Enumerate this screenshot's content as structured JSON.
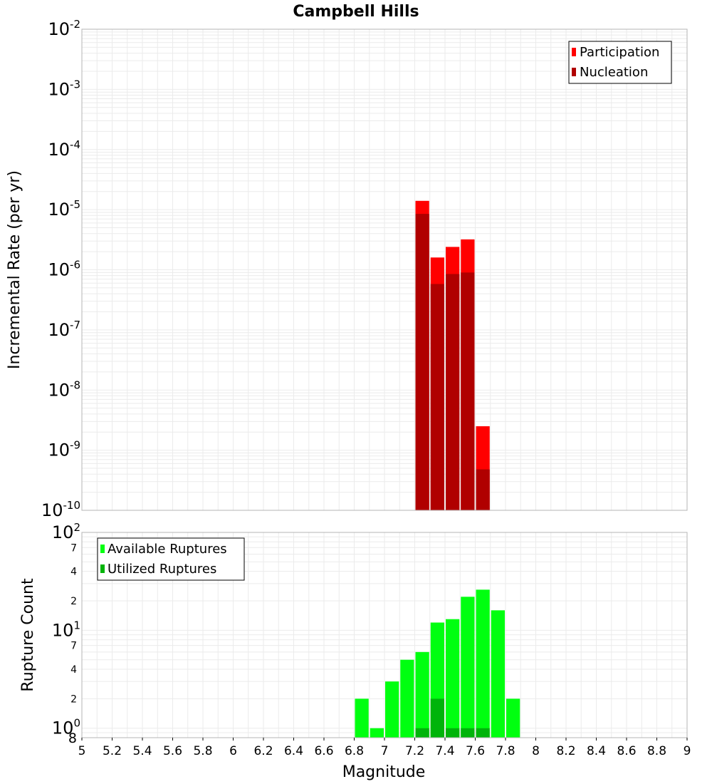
{
  "colors": {
    "participation": "#ff0000",
    "nucleation": "#b00000",
    "available": "#00ff10",
    "utilized": "#00b40a",
    "grid": "#ebebeb",
    "frame": "#b4b4b4"
  },
  "chart_data": [
    {
      "type": "bar",
      "title": "Campbell Hills",
      "xlabel": "",
      "ylabel": "Incremental Rate (per yr)",
      "yscale": "log",
      "ylim": [
        1e-10,
        0.01
      ],
      "xlim": [
        5,
        9
      ],
      "bin_width": 0.1,
      "y_tick_labels": [
        {
          "value": 1e-10,
          "base": "10",
          "exp": "-10"
        },
        {
          "value": 1e-09,
          "base": "10",
          "exp": "-9"
        },
        {
          "value": 1e-08,
          "base": "10",
          "exp": "-8"
        },
        {
          "value": 1e-07,
          "base": "10",
          "exp": "-7"
        },
        {
          "value": 1e-06,
          "base": "10",
          "exp": "-6"
        },
        {
          "value": 1e-05,
          "base": "10",
          "exp": "-5"
        },
        {
          "value": 0.0001,
          "base": "10",
          "exp": "-4"
        },
        {
          "value": 0.001,
          "base": "10",
          "exp": "-3"
        },
        {
          "value": 0.01,
          "base": "10",
          "exp": "-2"
        }
      ],
      "legend": {
        "position": "top-right",
        "entries": [
          "Participation",
          "Nucleation"
        ]
      },
      "series": [
        {
          "name": "Participation",
          "x": [
            7.25,
            7.35,
            7.45,
            7.55,
            7.65
          ],
          "values": [
            1.4e-05,
            1.6e-06,
            2.4e-06,
            3.2e-06,
            2.5e-09
          ]
        },
        {
          "name": "Nucleation",
          "x": [
            7.25,
            7.35,
            7.45,
            7.55,
            7.65
          ],
          "values": [
            8.5e-06,
            5.8e-07,
            8.5e-07,
            9e-07,
            4.8e-10
          ]
        }
      ]
    },
    {
      "type": "bar",
      "xlabel": "Magnitude",
      "ylabel": "Rupture Count",
      "yscale": "log",
      "ylim": [
        0.8,
        100
      ],
      "xlim": [
        5,
        9
      ],
      "bin_width": 0.1,
      "x_ticks": [
        "5",
        "5.2",
        "5.4",
        "5.6",
        "5.8",
        "6",
        "6.2",
        "6.4",
        "6.6",
        "6.8",
        "7",
        "7.2",
        "7.4",
        "7.6",
        "7.8",
        "8",
        "8.2",
        "8.4",
        "8.6",
        "8.8",
        "9"
      ],
      "y_tick_labels": [
        {
          "value": 1,
          "base": "10",
          "exp": "0"
        },
        {
          "value": 10,
          "base": "10",
          "exp": "1"
        },
        {
          "value": 100,
          "base": "10",
          "exp": "2"
        }
      ],
      "y_minor_labels": [
        {
          "value": 0.8,
          "label": "8"
        },
        {
          "value": 2,
          "label": "2"
        },
        {
          "value": 4,
          "label": "4"
        },
        {
          "value": 7,
          "label": "7"
        },
        {
          "value": 20,
          "label": "2"
        },
        {
          "value": 40,
          "label": "4"
        },
        {
          "value": 70,
          "label": "7"
        }
      ],
      "legend": {
        "position": "top-left",
        "entries": [
          "Available Ruptures",
          "Utilized Ruptures"
        ]
      },
      "series": [
        {
          "name": "Available Ruptures",
          "x": [
            6.85,
            6.95,
            7.05,
            7.15,
            7.25,
            7.35,
            7.45,
            7.55,
            7.65,
            7.75,
            7.85
          ],
          "values": [
            2,
            1,
            3,
            5,
            6,
            12,
            13,
            22,
            26,
            16,
            2
          ]
        },
        {
          "name": "Utilized Ruptures",
          "x": [
            7.25,
            7.35,
            7.45,
            7.55,
            7.65
          ],
          "values": [
            1,
            2,
            1,
            1,
            1
          ]
        }
      ]
    }
  ]
}
